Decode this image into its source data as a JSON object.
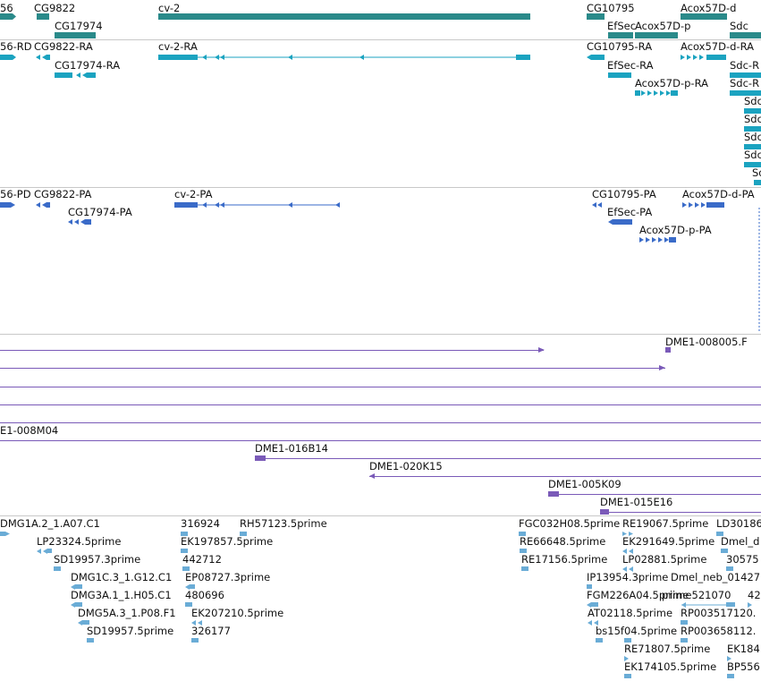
{
  "colors": {
    "gene": "#2a8a8a",
    "transcript": "#1ba3c0",
    "protein": "#3a6bc8",
    "clone": "#7a5ab8",
    "est": "#6aacd6",
    "separator": "#c8c8c8"
  },
  "tracks": {
    "genes": {
      "labels": [
        "56",
        "CG9822",
        "CG17974",
        "cv-2",
        "CG10795",
        "EfSec",
        "Acox57D-p",
        "Acox57D-d",
        "Sdc"
      ]
    },
    "transcripts": {
      "labels": [
        "56-RD",
        "CG9822-RA",
        "CG17974-RA",
        "cv-2-RA",
        "CG10795-RA",
        "Acox57D-d-RA",
        "EfSec-RA",
        "Sdc-R",
        "Acox57D-p-RA",
        "Sdc-R",
        "Sdc",
        "Sdc",
        "Sdc",
        "Sdc",
        "Sd"
      ]
    },
    "proteins": {
      "labels": [
        "56-PD",
        "CG9822-PA",
        "CG17974-PA",
        "cv-2-PA",
        "CG10795-PA",
        "Acox57D-d-PA",
        "EfSec-PA",
        "Acox57D-p-PA"
      ]
    },
    "clones": {
      "labels": [
        "DME1-008005.F",
        "E1-008M04",
        "DME1-016B14",
        "DME1-020K15",
        "DME1-005K09",
        "DME1-015E16"
      ]
    },
    "ests": {
      "labels": [
        "DMG1A.2_1.A07.C1",
        "316924",
        "RH57123.5prime",
        "FGC032H08.5prime",
        "RE19067.5prime",
        "LD30186",
        "LP23324.5prime",
        "EK197857.5prime",
        "RE66648.5prime",
        "EK291649.5prime",
        "Dmel_d",
        "SD19957.3prime",
        "442712",
        "RE17156.5prime",
        "LP02881.5prime",
        "30575",
        "DMG1C.3_1.G12.C1",
        "EP08727.3prime",
        "IP13954.3prime",
        "Dmel_neb_01427",
        "DMG3A.1_1.H05.C1",
        "480696",
        "FGM226A04.5prime",
        "prime521070",
        "42",
        "DMG5A.3_1.P08.F1",
        "EK207210.5prime",
        "AT02118.5prime",
        "RP003517120.",
        "SD19957.5prime",
        "326177",
        "bs15f04.5prime",
        "RP003658112.",
        "RE71807.5prime",
        "EK184",
        "EK174105.5prime",
        "BP556"
      ]
    }
  }
}
